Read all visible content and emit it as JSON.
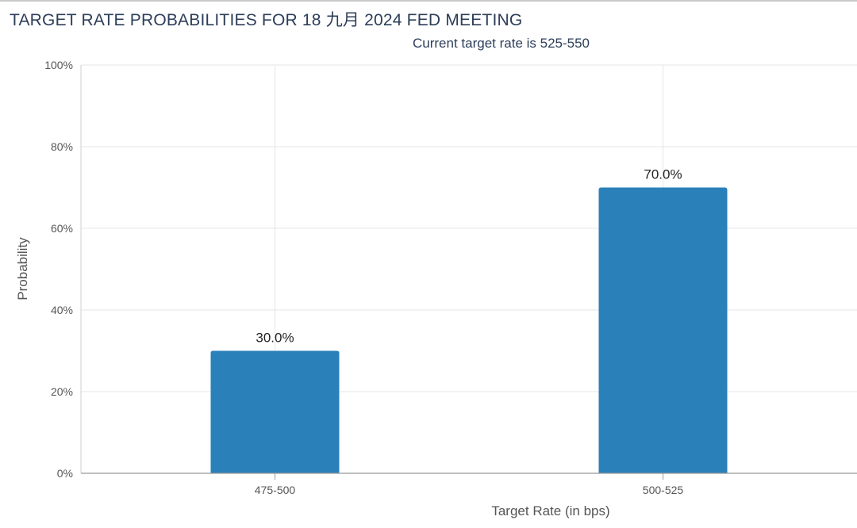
{
  "chart_data": {
    "type": "bar",
    "title": "TARGET RATE PROBABILITIES FOR 18 九月 2024 FED MEETING",
    "subtitle": "Current target rate is 525-550",
    "xlabel": "Target Rate (in bps)",
    "ylabel": "Probability",
    "categories": [
      "475-500",
      "500-525"
    ],
    "values": [
      30.0,
      70.0
    ],
    "data_labels": [
      "30.0%",
      "70.0%"
    ],
    "ylim": [
      0,
      100
    ],
    "yticks": [
      0,
      20,
      40,
      60,
      80,
      100
    ],
    "ytick_labels": [
      "0%",
      "20%",
      "40%",
      "60%",
      "80%",
      "100%"
    ],
    "grid": true,
    "legend": "none",
    "bar_color": "#2a80b9"
  }
}
